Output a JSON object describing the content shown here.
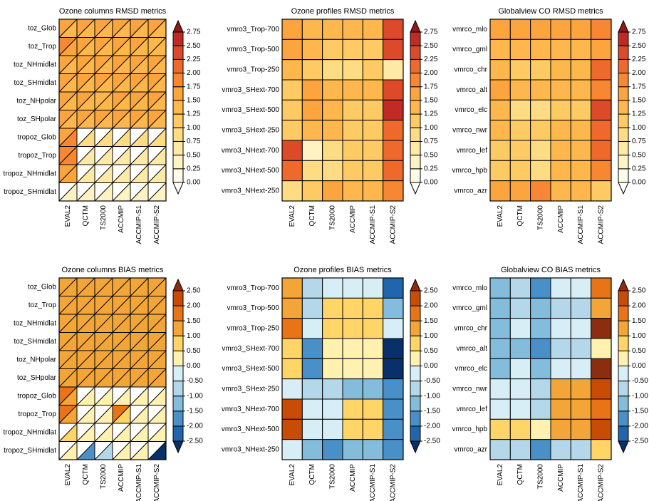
{
  "chart_data": [
    {
      "type": "triangle-heatmap",
      "title": "Ozone columns RMSD metrics",
      "rows": [
        "toz_Glob",
        "toz_Trop",
        "toz_NHmidlat",
        "toz_SHmidlat",
        "toz_NHpolar",
        "toz_SHpolar",
        "tropoz_Glob",
        "tropoz_Trop",
        "tropoz_NHmidlat",
        "tropoz_SHmidlat"
      ],
      "columns": [
        "EVAL2",
        "QCTM",
        "TS2000",
        "ACCMIP",
        "ACCMIP-S1",
        "ACCMIP-S2"
      ],
      "upper": [
        [
          1.6,
          1.6,
          1.6,
          1.6,
          1.6,
          1.6
        ],
        [
          2.0,
          1.6,
          1.6,
          1.6,
          1.6,
          1.4
        ],
        [
          1.6,
          1.6,
          1.6,
          1.6,
          1.6,
          1.6
        ],
        [
          1.6,
          1.6,
          1.6,
          1.6,
          1.6,
          1.6
        ],
        [
          1.6,
          1.6,
          1.4,
          1.6,
          1.6,
          1.6
        ],
        [
          1.6,
          1.6,
          1.6,
          1.6,
          1.6,
          1.6
        ],
        [
          1.6,
          null,
          null,
          null,
          null,
          null
        ],
        [
          1.8,
          null,
          null,
          null,
          null,
          null
        ],
        [
          1.6,
          null,
          null,
          null,
          null,
          null
        ],
        [
          null,
          null,
          null,
          null,
          null,
          null
        ]
      ],
      "lower": [
        [
          1.4,
          1.4,
          1.4,
          1.4,
          1.4,
          1.4
        ],
        [
          1.6,
          1.4,
          1.4,
          1.4,
          1.4,
          1.4
        ],
        [
          1.4,
          1.4,
          1.4,
          1.4,
          1.4,
          1.4
        ],
        [
          1.4,
          1.4,
          1.4,
          1.4,
          1.4,
          1.4
        ],
        [
          1.4,
          1.4,
          1.4,
          1.4,
          1.4,
          1.4
        ],
        [
          1.4,
          1.4,
          1.4,
          1.4,
          1.4,
          1.4
        ],
        [
          1.8,
          0.9,
          0.9,
          0.9,
          0.9,
          0.9
        ],
        [
          1.8,
          0.6,
          0.6,
          0.6,
          0.6,
          0.6
        ],
        [
          1.6,
          0.6,
          0.6,
          0.6,
          0.6,
          0.6
        ],
        [
          0.4,
          0.4,
          0.4,
          0.4,
          0.4,
          0.4
        ]
      ],
      "colorbar_ticks": [
        {
          "value": 0,
          "label": "0.00"
        },
        0.25,
        {
          "value": 0.5,
          "label": "0.50"
        },
        0.75,
        {
          "value": 1,
          "label": "1.00"
        },
        1.25,
        {
          "value": 1.5,
          "label": "1.50"
        },
        1.75,
        {
          "value": 2,
          "label": "2.00"
        },
        2.25,
        {
          "value": 2.5,
          "label": "2.50"
        },
        2.75
      ],
      "colors": [
        "#ffffff",
        "#fffbe6",
        "#fff3c4",
        "#feeaa4",
        "#fedc84",
        "#fdca64",
        "#fdb74c",
        "#fca43e",
        "#f88734",
        "#ef692c",
        "#dd4a29",
        "#c22b25",
        "#8e1a1a"
      ]
    },
    {
      "type": "heatmap",
      "title": "Ozone profiles RMSD metrics",
      "rows": [
        "vmro3_Trop-700",
        "vmro3_Trop-500",
        "vmro3_Trop-250",
        "vmro3_SHext-700",
        "vmro3_SHext-500",
        "vmro3_SHext-250",
        "vmro3_NHext-700",
        "vmro3_NHext-500",
        "vmro3_NHext-250"
      ],
      "columns": [
        "EVAL2",
        "QCTM",
        "TS2000",
        "ACCMIP",
        "ACCMIP-S1",
        "ACCMIP-S2"
      ],
      "values": [
        [
          1.6,
          1.3,
          1.3,
          1.3,
          1.3,
          2.4
        ],
        [
          1.6,
          1.3,
          1.1,
          1.1,
          1.1,
          2.3
        ],
        [
          1.3,
          1.1,
          1.0,
          1.0,
          1.1,
          0.6
        ],
        [
          1.1,
          1.6,
          1.3,
          1.3,
          1.3,
          2.3
        ],
        [
          1.1,
          1.6,
          1.3,
          1.1,
          1.1,
          2.6
        ],
        [
          1.1,
          1.3,
          1.3,
          1.1,
          1.1,
          2.2
        ],
        [
          2.3,
          0.4,
          0.9,
          1.1,
          1.1,
          2.1
        ],
        [
          2.1,
          0.9,
          0.9,
          1.1,
          1.1,
          2.1
        ],
        [
          1.0,
          1.1,
          1.7,
          1.3,
          1.3,
          1.8
        ]
      ],
      "colorbar_ticks": [
        {
          "value": 0,
          "label": "0.00"
        },
        0.25,
        {
          "value": 0.5,
          "label": "0.50"
        },
        0.75,
        {
          "value": 1,
          "label": "1.00"
        },
        1.25,
        {
          "value": 1.5,
          "label": "1.50"
        },
        1.75,
        {
          "value": 2,
          "label": "2.00"
        },
        2.25,
        {
          "value": 2.5,
          "label": "2.50"
        },
        2.75
      ],
      "colors": [
        "#ffffff",
        "#fffbe6",
        "#fff3c4",
        "#feeaa4",
        "#fedc84",
        "#fdca64",
        "#fdb74c",
        "#fca43e",
        "#f88734",
        "#ef692c",
        "#dd4a29",
        "#c22b25",
        "#8e1a1a"
      ]
    },
    {
      "type": "heatmap",
      "title": "Globalview CO RMSD metrics",
      "rows": [
        "vmrco_mlo",
        "vmrco_gml",
        "vmrco_chr",
        "vmrco_alt",
        "vmrco_elc",
        "vmrco_nwr",
        "vmrco_lef",
        "vmrco_hpb",
        "vmrco_azr"
      ],
      "columns": [
        "EVAL2",
        "QCTM",
        "TS2000",
        "ACCMIP",
        "ACCMIP-S1",
        "ACCMIP-S2"
      ],
      "values": [
        [
          1.6,
          1.6,
          1.6,
          1.6,
          1.6,
          2.0
        ],
        [
          1.4,
          1.4,
          1.4,
          1.4,
          1.4,
          1.6
        ],
        [
          1.4,
          1.1,
          1.1,
          1.4,
          1.4,
          2.2
        ],
        [
          1.6,
          1.3,
          1.3,
          1.4,
          1.4,
          1.8
        ],
        [
          1.3,
          0.9,
          0.9,
          1.1,
          1.1,
          2.4
        ],
        [
          1.3,
          1.1,
          1.1,
          1.4,
          1.4,
          2.1
        ],
        [
          1.1,
          1.1,
          1.0,
          1.4,
          1.4,
          2.1
        ],
        [
          1.1,
          1.1,
          0.9,
          1.4,
          1.4,
          2.0
        ],
        [
          1.6,
          1.6,
          1.8,
          1.4,
          1.4,
          1.1
        ]
      ],
      "colorbar_ticks": [
        {
          "value": 0,
          "label": "0.00"
        },
        0.25,
        {
          "value": 0.5,
          "label": "0.50"
        },
        0.75,
        {
          "value": 1,
          "label": "1.00"
        },
        1.25,
        {
          "value": 1.5,
          "label": "1.50"
        },
        1.75,
        {
          "value": 2,
          "label": "2.00"
        },
        2.25,
        {
          "value": 2.5,
          "label": "2.50"
        },
        2.75
      ],
      "colors": [
        "#ffffff",
        "#fffbe6",
        "#fff3c4",
        "#feeaa4",
        "#fedc84",
        "#fdca64",
        "#fdb74c",
        "#fca43e",
        "#f88734",
        "#ef692c",
        "#dd4a29",
        "#c22b25",
        "#8e1a1a"
      ]
    },
    {
      "type": "triangle-heatmap",
      "title": "Ozone columns BIAS metrics",
      "rows": [
        "toz_Glob",
        "toz_Trop",
        "toz_NHmidlat",
        "toz_SHmidlat",
        "toz_NHpolar",
        "toz_SHpolar",
        "tropoz_Glob",
        "tropoz_Trop",
        "tropoz_NHmidlat",
        "tropoz_SHmidlat"
      ],
      "columns": [
        "EVAL2",
        "QCTM",
        "TS2000",
        "ACCMIP",
        "ACCMIP-S1",
        "ACCMIP-S2"
      ],
      "upper": [
        [
          1.2,
          1.2,
          1.2,
          1.2,
          1.2,
          1.2
        ],
        [
          1.2,
          1.2,
          1.2,
          1.2,
          1.2,
          1.2
        ],
        [
          1.2,
          1.2,
          1.2,
          1.2,
          1.2,
          1.2
        ],
        [
          1.2,
          1.2,
          1.2,
          1.2,
          1.2,
          1.2
        ],
        [
          1.2,
          1.2,
          1.2,
          1.2,
          1.2,
          1.2
        ],
        [
          1.2,
          1.2,
          1.2,
          1.2,
          1.2,
          1.2
        ],
        [
          1.7,
          null,
          null,
          null,
          null,
          null
        ],
        [
          1.8,
          null,
          null,
          1.8,
          null,
          null
        ],
        [
          null,
          null,
          null,
          null,
          null,
          null
        ],
        [
          null,
          null,
          null,
          null,
          null,
          null
        ]
      ],
      "lower": [
        [
          1.2,
          1.2,
          1.2,
          1.2,
          1.2,
          1.2
        ],
        [
          1.2,
          1.2,
          1.2,
          1.2,
          1.2,
          1.2
        ],
        [
          1.2,
          1.2,
          1.2,
          1.2,
          1.2,
          1.2
        ],
        [
          1.2,
          1.2,
          1.2,
          1.2,
          1.2,
          1.2
        ],
        [
          1.2,
          1.2,
          1.2,
          1.2,
          1.2,
          1.2
        ],
        [
          1.2,
          1.2,
          1.2,
          1.2,
          1.2,
          1.2
        ],
        [
          1.2,
          0.3,
          0.3,
          0.3,
          0.3,
          0.3
        ],
        [
          1.2,
          0.3,
          0.3,
          0.8,
          0.3,
          0.3
        ],
        [
          0.7,
          0.3,
          0.3,
          0.3,
          0.3,
          0.3
        ],
        [
          0.3,
          -1.7,
          -0.8,
          0.3,
          0.3,
          -2.8
        ]
      ],
      "colorbar_ticks": [
        {
          "value": -2.5,
          "label": "-2.50"
        },
        {
          "value": -2,
          "label": "-2.00"
        },
        {
          "value": -1.5,
          "label": "-1.50"
        },
        {
          "value": -1,
          "label": "-1.00"
        },
        {
          "value": -0.5,
          "label": "-0.50"
        },
        {
          "value": 0,
          "label": "0.00"
        },
        {
          "value": 0.5,
          "label": "0.50"
        },
        {
          "value": 1,
          "label": "1.00"
        },
        {
          "value": 1.5,
          "label": "1.50"
        },
        {
          "value": 2,
          "label": "2.00"
        },
        {
          "value": 2.5,
          "label": "2.50"
        }
      ],
      "colors": [
        "#08306b",
        "#2166ac",
        "#4a90c8",
        "#84bcdc",
        "#b4d8ea",
        "#d8eef6",
        "#fff2b0",
        "#fed566",
        "#f3a637",
        "#e97417",
        "#c84c06",
        "#8c2d10"
      ]
    },
    {
      "type": "heatmap",
      "title": "Ozone profiles BIAS metrics",
      "rows": [
        "vmro3_Trop-700",
        "vmro3_Trop-500",
        "vmro3_Trop-250",
        "vmro3_SHext-700",
        "vmro3_SHext-500",
        "vmro3_SHext-250",
        "vmro3_NHext-700",
        "vmro3_NHext-500",
        "vmro3_NHext-250"
      ],
      "columns": [
        "EVAL2",
        "QCTM",
        "TS2000",
        "ACCMIP",
        "ACCMIP-S1",
        "ACCMIP-S2"
      ],
      "values": [
        [
          1.2,
          -0.8,
          -0.3,
          -0.3,
          -0.3,
          -2.2
        ],
        [
          1.2,
          -0.8,
          0.7,
          0.7,
          0.7,
          -1.2
        ],
        [
          1.7,
          -0.3,
          0.7,
          0.7,
          0.7,
          -0.3
        ],
        [
          0.7,
          -1.7,
          0.3,
          0.3,
          0.3,
          -2.8
        ],
        [
          0.7,
          -1.7,
          0.3,
          0.3,
          0.3,
          -2.8
        ],
        [
          -0.3,
          -0.8,
          -0.8,
          -1.2,
          -1.2,
          -1.7
        ],
        [
          2.2,
          -0.3,
          -0.3,
          0.7,
          0.7,
          -1.7
        ],
        [
          2.2,
          -0.3,
          -0.3,
          0.7,
          0.7,
          -1.7
        ],
        [
          -0.3,
          -1.2,
          -1.7,
          -1.2,
          -1.2,
          -1.7
        ]
      ],
      "colorbar_ticks": [
        {
          "value": -2.5,
          "label": "-2.50"
        },
        {
          "value": -2,
          "label": "-2.00"
        },
        {
          "value": -1.5,
          "label": "-1.50"
        },
        {
          "value": -1,
          "label": "-1.00"
        },
        {
          "value": -0.5,
          "label": "-0.50"
        },
        {
          "value": 0,
          "label": "0.00"
        },
        {
          "value": 0.5,
          "label": "0.50"
        },
        {
          "value": 1,
          "label": "1.00"
        },
        {
          "value": 1.5,
          "label": "1.50"
        },
        {
          "value": 2,
          "label": "2.00"
        },
        {
          "value": 2.5,
          "label": "2.50"
        }
      ],
      "colors": [
        "#08306b",
        "#2166ac",
        "#4a90c8",
        "#84bcdc",
        "#b4d8ea",
        "#d8eef6",
        "#fff2b0",
        "#fed566",
        "#f3a637",
        "#e97417",
        "#c84c06",
        "#8c2d10"
      ]
    },
    {
      "type": "heatmap",
      "title": "Globalview CO BIAS metrics",
      "rows": [
        "vmrco_mlo",
        "vmrco_gml",
        "vmrco_chr",
        "vmrco_alt",
        "vmrco_elc",
        "vmrco_nwr",
        "vmrco_lef",
        "vmrco_hpb",
        "vmrco_azr"
      ],
      "columns": [
        "EVAL2",
        "QCTM",
        "TS2000",
        "ACCMIP",
        "ACCMIP-S1",
        "ACCMIP-S2"
      ],
      "values": [
        [
          -1.2,
          -0.8,
          -1.7,
          -0.3,
          -0.3,
          1.8
        ],
        [
          -1.2,
          -0.8,
          -1.2,
          -0.8,
          -0.8,
          1.2
        ],
        [
          -1.2,
          -0.3,
          -1.2,
          -0.3,
          -0.3,
          2.7
        ],
        [
          -1.2,
          -1.2,
          -1.7,
          -0.8,
          -0.8,
          0.3
        ],
        [
          -1.2,
          -0.3,
          -1.2,
          -0.3,
          -0.3,
          2.7
        ],
        [
          -0.3,
          -0.3,
          -0.8,
          1.2,
          1.2,
          2.2
        ],
        [
          -0.3,
          -0.3,
          -0.8,
          1.2,
          1.2,
          1.8
        ],
        [
          0.7,
          0.7,
          0.3,
          1.2,
          1.2,
          2.2
        ],
        [
          -0.8,
          -0.8,
          -1.7,
          -0.8,
          -0.8,
          0.7
        ]
      ],
      "colorbar_ticks": [
        {
          "value": -2.5,
          "label": "-2.50"
        },
        {
          "value": -2,
          "label": "-2.00"
        },
        {
          "value": -1.5,
          "label": "-1.50"
        },
        {
          "value": -1,
          "label": "-1.00"
        },
        {
          "value": -0.5,
          "label": "-0.50"
        },
        {
          "value": 0,
          "label": "0.00"
        },
        {
          "value": 0.5,
          "label": "0.50"
        },
        {
          "value": 1,
          "label": "1.00"
        },
        {
          "value": 1.5,
          "label": "1.50"
        },
        {
          "value": 2,
          "label": "2.00"
        },
        {
          "value": 2.5,
          "label": "2.50"
        }
      ],
      "colors": [
        "#08306b",
        "#2166ac",
        "#4a90c8",
        "#84bcdc",
        "#b4d8ea",
        "#d8eef6",
        "#fff2b0",
        "#fed566",
        "#f3a637",
        "#e97417",
        "#c84c06",
        "#8c2d10"
      ]
    }
  ]
}
